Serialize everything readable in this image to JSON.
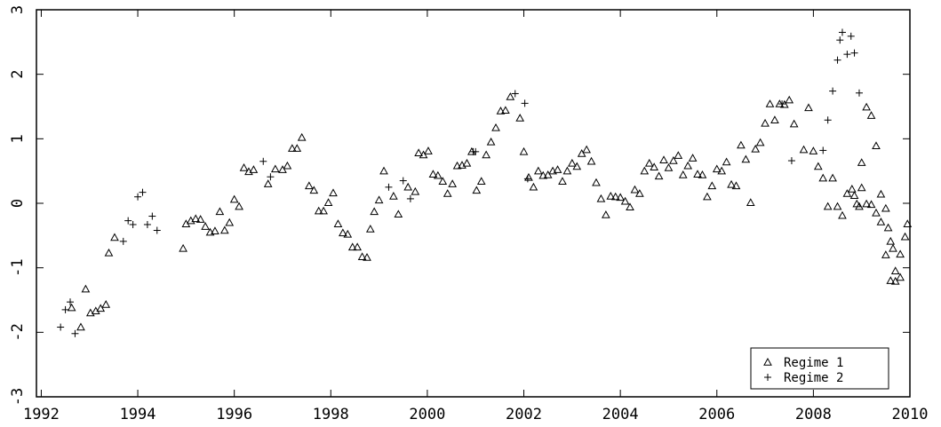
{
  "chart_data": {
    "type": "scatter",
    "title": "",
    "xlabel": "",
    "ylabel": "",
    "xlim": [
      1991.9,
      2010.0
    ],
    "ylim": [
      -3,
      3
    ],
    "x_ticks": [
      1992,
      1994,
      1996,
      1998,
      2000,
      2002,
      2004,
      2006,
      2008,
      2010
    ],
    "x_tick_labels": [
      "1992",
      "1994",
      "1996",
      "1998",
      "2000",
      "2002",
      "2004",
      "2006",
      "2008",
      "2010"
    ],
    "y_ticks": [
      -3,
      -2,
      -1,
      0,
      1,
      2,
      3
    ],
    "y_tick_labels": [
      "-3",
      "-2",
      "-1",
      "0",
      "1",
      "2",
      "3"
    ],
    "grid": false,
    "legend_position": "bottom-right",
    "series": [
      {
        "name": "Regime 1",
        "marker": "triangle",
        "color": "#000000",
        "points": [
          [
            1992.63,
            -1.62
          ],
          [
            1992.82,
            -1.92
          ],
          [
            1992.92,
            -1.33
          ],
          [
            1993.02,
            -1.7
          ],
          [
            1993.13,
            -1.67
          ],
          [
            1993.23,
            -1.63
          ],
          [
            1993.34,
            -1.57
          ],
          [
            1993.4,
            -0.77
          ],
          [
            1993.52,
            -0.53
          ],
          [
            1994.94,
            -0.7
          ],
          [
            1995.0,
            -0.32
          ],
          [
            1995.1,
            -0.27
          ],
          [
            1995.2,
            -0.24
          ],
          [
            1995.3,
            -0.25
          ],
          [
            1995.4,
            -0.36
          ],
          [
            1995.5,
            -0.45
          ],
          [
            1995.6,
            -0.43
          ],
          [
            1995.7,
            -0.13
          ],
          [
            1995.8,
            -0.42
          ],
          [
            1995.9,
            -0.3
          ],
          [
            1996.0,
            0.06
          ],
          [
            1996.1,
            -0.05
          ],
          [
            1996.2,
            0.55
          ],
          [
            1996.3,
            0.49
          ],
          [
            1996.4,
            0.52
          ],
          [
            1996.7,
            0.3
          ],
          [
            1996.85,
            0.53
          ],
          [
            1997.0,
            0.52
          ],
          [
            1997.1,
            0.58
          ],
          [
            1997.2,
            0.85
          ],
          [
            1997.3,
            0.85
          ],
          [
            1997.4,
            1.02
          ],
          [
            1997.55,
            0.27
          ],
          [
            1997.65,
            0.2
          ],
          [
            1997.75,
            -0.12
          ],
          [
            1997.85,
            -0.12
          ],
          [
            1997.95,
            0.01
          ],
          [
            1998.05,
            0.16
          ],
          [
            1998.15,
            -0.32
          ],
          [
            1998.25,
            -0.46
          ],
          [
            1998.35,
            -0.48
          ],
          [
            1998.45,
            -0.68
          ],
          [
            1998.55,
            -0.68
          ],
          [
            1998.65,
            -0.83
          ],
          [
            1998.75,
            -0.84
          ],
          [
            1998.82,
            -0.4
          ],
          [
            1998.9,
            -0.13
          ],
          [
            1999.0,
            0.05
          ],
          [
            1999.1,
            0.5
          ],
          [
            1999.3,
            0.11
          ],
          [
            1999.4,
            -0.17
          ],
          [
            1999.6,
            0.25
          ],
          [
            1999.75,
            0.18
          ],
          [
            1999.82,
            0.78
          ],
          [
            1999.92,
            0.75
          ],
          [
            2000.02,
            0.81
          ],
          [
            2000.12,
            0.45
          ],
          [
            2000.22,
            0.43
          ],
          [
            2000.32,
            0.34
          ],
          [
            2000.42,
            0.15
          ],
          [
            2000.52,
            0.3
          ],
          [
            2000.62,
            0.58
          ],
          [
            2000.72,
            0.59
          ],
          [
            2000.82,
            0.62
          ],
          [
            2000.92,
            0.8
          ],
          [
            2001.02,
            0.2
          ],
          [
            2001.12,
            0.34
          ],
          [
            2001.22,
            0.75
          ],
          [
            2001.32,
            0.95
          ],
          [
            2001.42,
            1.17
          ],
          [
            2001.52,
            1.43
          ],
          [
            2001.62,
            1.44
          ],
          [
            2001.72,
            1.65
          ],
          [
            2001.92,
            1.32
          ],
          [
            2002.0,
            0.8
          ],
          [
            2002.1,
            0.4
          ],
          [
            2002.2,
            0.25
          ],
          [
            2002.3,
            0.5
          ],
          [
            2002.4,
            0.43
          ],
          [
            2002.5,
            0.44
          ],
          [
            2002.6,
            0.5
          ],
          [
            2002.7,
            0.52
          ],
          [
            2002.8,
            0.34
          ],
          [
            2002.9,
            0.5
          ],
          [
            2003.0,
            0.62
          ],
          [
            2003.1,
            0.57
          ],
          [
            2003.2,
            0.77
          ],
          [
            2003.3,
            0.83
          ],
          [
            2003.4,
            0.65
          ],
          [
            2003.5,
            0.32
          ],
          [
            2003.6,
            0.07
          ],
          [
            2003.7,
            -0.18
          ],
          [
            2003.8,
            0.11
          ],
          [
            2003.9,
            0.1
          ],
          [
            2004.0,
            0.09
          ],
          [
            2004.1,
            0.03
          ],
          [
            2004.2,
            -0.06
          ],
          [
            2004.3,
            0.21
          ],
          [
            2004.4,
            0.15
          ],
          [
            2004.5,
            0.5
          ],
          [
            2004.6,
            0.62
          ],
          [
            2004.7,
            0.56
          ],
          [
            2004.8,
            0.42
          ],
          [
            2004.9,
            0.67
          ],
          [
            2005.0,
            0.55
          ],
          [
            2005.1,
            0.66
          ],
          [
            2005.2,
            0.74
          ],
          [
            2005.3,
            0.44
          ],
          [
            2005.4,
            0.58
          ],
          [
            2005.5,
            0.7
          ],
          [
            2005.6,
            0.45
          ],
          [
            2005.7,
            0.44
          ],
          [
            2005.8,
            0.1
          ],
          [
            2005.9,
            0.27
          ],
          [
            2006.0,
            0.53
          ],
          [
            2006.1,
            0.5
          ],
          [
            2006.2,
            0.64
          ],
          [
            2006.3,
            0.29
          ],
          [
            2006.4,
            0.27
          ],
          [
            2006.5,
            0.9
          ],
          [
            2006.6,
            0.68
          ],
          [
            2006.7,
            0.01
          ],
          [
            2006.8,
            0.84
          ],
          [
            2006.9,
            0.94
          ],
          [
            2007.0,
            1.24
          ],
          [
            2007.1,
            1.54
          ],
          [
            2007.2,
            1.29
          ],
          [
            2007.3,
            1.54
          ],
          [
            2007.4,
            1.53
          ],
          [
            2007.5,
            1.6
          ],
          [
            2007.6,
            1.23
          ],
          [
            2007.8,
            0.83
          ],
          [
            2007.9,
            1.48
          ],
          [
            2008.0,
            0.81
          ],
          [
            2008.1,
            0.57
          ],
          [
            2008.2,
            0.39
          ],
          [
            2008.3,
            -0.05
          ],
          [
            2008.4,
            0.39
          ],
          [
            2008.5,
            -0.05
          ],
          [
            2008.6,
            -0.19
          ],
          [
            2008.7,
            0.15
          ],
          [
            2008.8,
            0.22
          ],
          [
            2008.85,
            0.12
          ],
          [
            2008.9,
            -0.01
          ],
          [
            2009.0,
            0.24
          ],
          [
            2009.1,
            -0.01
          ],
          [
            2009.2,
            -0.02
          ],
          [
            2009.3,
            -0.15
          ],
          [
            2009.4,
            -0.29
          ],
          [
            2009.5,
            -0.8
          ],
          [
            2009.6,
            -0.59
          ],
          [
            2009.65,
            -0.7
          ],
          [
            2009.7,
            -1.05
          ],
          [
            2009.8,
            -1.15
          ],
          [
            2009.9,
            -0.52
          ],
          [
            2009.95,
            -0.32
          ],
          [
            2008.95,
            -0.05
          ],
          [
            2009.0,
            0.63
          ],
          [
            2009.1,
            1.49
          ],
          [
            2009.2,
            1.36
          ],
          [
            2009.3,
            0.89
          ],
          [
            2009.4,
            0.14
          ],
          [
            2009.5,
            -0.08
          ],
          [
            2009.55,
            -0.38
          ],
          [
            2009.6,
            -1.2
          ],
          [
            2009.7,
            -1.21
          ],
          [
            2009.8,
            -0.79
          ]
        ]
      },
      {
        "name": "Regime 2",
        "marker": "plus",
        "color": "#000000",
        "points": [
          [
            1992.4,
            -1.92
          ],
          [
            1992.5,
            -1.65
          ],
          [
            1992.6,
            -1.53
          ],
          [
            1992.7,
            -2.02
          ],
          [
            1993.7,
            -0.59
          ],
          [
            1993.8,
            -0.27
          ],
          [
            1993.9,
            -0.33
          ],
          [
            1994.0,
            0.1
          ],
          [
            1994.1,
            0.17
          ],
          [
            1994.2,
            -0.33
          ],
          [
            1994.3,
            -0.2
          ],
          [
            1994.4,
            -0.42
          ],
          [
            1996.6,
            0.65
          ],
          [
            1996.75,
            0.41
          ],
          [
            1999.2,
            0.25
          ],
          [
            1999.5,
            0.35
          ],
          [
            1999.65,
            0.07
          ],
          [
            2000.95,
            0.8
          ],
          [
            2001.0,
            0.8
          ],
          [
            2001.82,
            1.7
          ],
          [
            2002.02,
            1.55
          ],
          [
            2002.08,
            0.38
          ],
          [
            2007.35,
            1.54
          ],
          [
            2007.55,
            0.66
          ],
          [
            2008.2,
            0.82
          ],
          [
            2008.3,
            1.29
          ],
          [
            2008.4,
            1.74
          ],
          [
            2008.5,
            2.22
          ],
          [
            2008.55,
            2.53
          ],
          [
            2008.6,
            2.65
          ],
          [
            2008.7,
            2.31
          ],
          [
            2008.78,
            2.59
          ],
          [
            2008.85,
            2.33
          ],
          [
            2008.95,
            1.71
          ]
        ]
      }
    ]
  }
}
